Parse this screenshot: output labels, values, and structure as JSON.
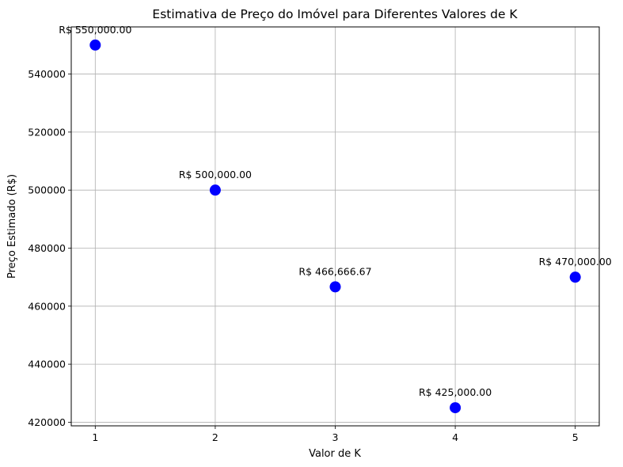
{
  "chart_data": {
    "type": "scatter",
    "title": "Estimativa de Preço do Imóvel para Diferentes Valores de K",
    "xlabel": "Valor de K",
    "ylabel": "Preço Estimado (R$)",
    "x": [
      1,
      2,
      3,
      4,
      5
    ],
    "y": [
      550000,
      500000,
      466666.67,
      425000,
      470000
    ],
    "point_labels": [
      "R$ 550,000.00",
      "R$ 500,000.00",
      "R$ 466,666.67",
      "R$ 425,000.00",
      "R$ 470,000.00"
    ],
    "xticks": [
      1,
      2,
      3,
      4,
      5
    ],
    "xtick_labels": [
      "1",
      "2",
      "3",
      "4",
      "5"
    ],
    "yticks": [
      420000,
      440000,
      460000,
      480000,
      500000,
      520000,
      540000
    ],
    "ytick_labels": [
      "420000",
      "440000",
      "460000",
      "480000",
      "500000",
      "520000",
      "540000"
    ],
    "xlim": [
      0.8,
      5.2
    ],
    "ylim": [
      418750,
      556250
    ],
    "grid": true,
    "point_color": "#0000ff"
  }
}
